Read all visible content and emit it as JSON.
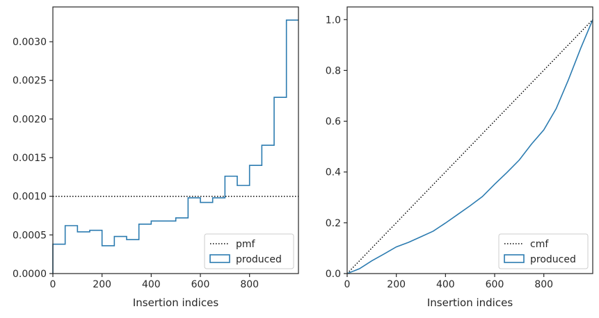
{
  "chart_data": [
    {
      "type": "line",
      "chart_style": "step histogram",
      "xlabel": "Insertion indices",
      "ylabel": "",
      "xlim": [
        0,
        999
      ],
      "ylim": [
        0,
        0.00345
      ],
      "x_ticks": [
        0,
        200,
        400,
        600,
        800
      ],
      "x_tick_labels": [
        "0",
        "200",
        "400",
        "600",
        "800"
      ],
      "y_ticks": [
        0,
        0.0005,
        0.001,
        0.0015,
        0.002,
        0.0025,
        0.003
      ],
      "y_tick_labels": [
        "0.0000",
        "0.0005",
        "0.0010",
        "0.0015",
        "0.0020",
        "0.0025",
        "0.0030"
      ],
      "legend_position": "lower-right",
      "grid": false,
      "series": [
        {
          "name": "pmf",
          "style": "dotted",
          "color": "#000000",
          "x": [
            0,
            999
          ],
          "y": [
            0.001,
            0.001
          ]
        },
        {
          "name": "produced",
          "style": "step",
          "color": "#2b7bb0",
          "bin_edges": [
            0,
            50,
            100,
            150,
            200,
            250,
            300,
            350,
            400,
            450,
            500,
            550,
            600,
            650,
            700,
            750,
            800,
            850,
            900,
            950,
            999
          ],
          "values": [
            0.00038,
            0.00062,
            0.00054,
            0.00056,
            0.00036,
            0.00048,
            0.00044,
            0.00064,
            0.00068,
            0.00068,
            0.00072,
            0.00098,
            0.00092,
            0.00098,
            0.00126,
            0.00114,
            0.0014,
            0.00166,
            0.00228,
            0.00328
          ]
        }
      ]
    },
    {
      "type": "line",
      "xlabel": "Insertion indices",
      "ylabel": "",
      "xlim": [
        0,
        999
      ],
      "ylim": [
        0,
        1.05
      ],
      "x_ticks": [
        0,
        200,
        400,
        600,
        800
      ],
      "x_tick_labels": [
        "0",
        "200",
        "400",
        "600",
        "800"
      ],
      "y_ticks": [
        0,
        0.2,
        0.4,
        0.6,
        0.8,
        1.0
      ],
      "y_tick_labels": [
        "0.0",
        "0.2",
        "0.4",
        "0.6",
        "0.8",
        "1.0"
      ],
      "legend_position": "lower-right",
      "grid": false,
      "series": [
        {
          "name": "cmf",
          "style": "dotted",
          "color": "#000000",
          "x": [
            0,
            999
          ],
          "y": [
            0,
            1
          ]
        },
        {
          "name": "produced",
          "style": "step",
          "color": "#2b7bb0",
          "x": [
            0,
            50,
            100,
            150,
            200,
            250,
            300,
            350,
            400,
            450,
            500,
            550,
            600,
            650,
            700,
            750,
            800,
            850,
            900,
            950,
            999
          ],
          "y": [
            0,
            0.019,
            0.05,
            0.077,
            0.105,
            0.123,
            0.145,
            0.167,
            0.199,
            0.233,
            0.267,
            0.303,
            0.352,
            0.398,
            0.447,
            0.51,
            0.566,
            0.649,
            0.763,
            0.887,
            1.0
          ]
        }
      ]
    }
  ]
}
